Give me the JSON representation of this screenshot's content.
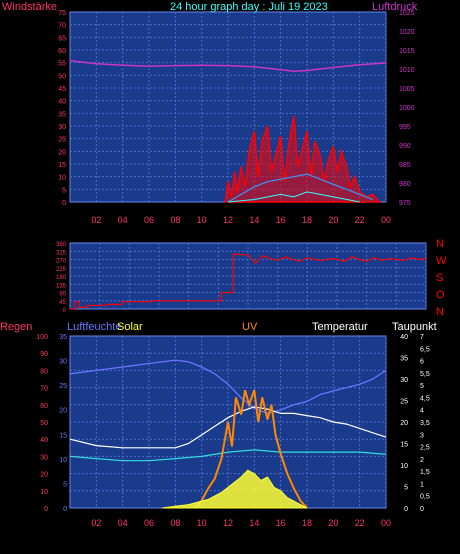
{
  "colors": {
    "panel_bg": "#1a3a8c",
    "grid": "#4a6fd0",
    "wind_red": "#ff0000",
    "pressure_magenta": "#cc33cc",
    "wind_blue": "#3399ff",
    "cyan": "#33ffff",
    "humidity": "#6677ff",
    "uv": "#ff8800",
    "solar": "#ffff33",
    "temp": "#ffffff",
    "dewpoint": "#33dddd",
    "rain": "#ff3366"
  },
  "chart_data": [
    {
      "type": "line",
      "title": "24 hour graph day : Juli 19 2023",
      "ylabel_left": "Windstärke",
      "ylabel_right": "Luftdruck",
      "left_ticks": [
        "75",
        "70",
        "65",
        "60",
        "55",
        "50",
        "45",
        "40",
        "35",
        "30",
        "25",
        "20",
        "15",
        "10",
        "5",
        "0"
      ],
      "left_range": [
        0,
        75
      ],
      "right_ticks": [
        "1025",
        "1020",
        "1015",
        "1010",
        "1005",
        "1000",
        "995",
        "990",
        "985",
        "980",
        "975"
      ],
      "right_range": [
        975,
        1025
      ],
      "x_ticks": [
        "02",
        "04",
        "06",
        "08",
        "10",
        "12",
        "14",
        "16",
        "18",
        "20",
        "22",
        "00"
      ],
      "series": [
        {
          "key": "pressure",
          "axis": "right",
          "x": [
            0,
            2,
            4,
            6,
            8,
            10,
            12,
            14,
            16,
            17,
            18,
            20,
            22,
            24
          ],
          "values": [
            1012.2,
            1011.4,
            1011.0,
            1010.7,
            1010.9,
            1011.0,
            1010.9,
            1010.6,
            1009.8,
            1009.4,
            1009.6,
            1010.4,
            1011.1,
            1011.6
          ]
        },
        {
          "key": "gust",
          "axis": "left",
          "x": [
            11.8,
            12.0,
            12.3,
            12.5,
            12.7,
            13.0,
            13.3,
            13.6,
            14.0,
            14.3,
            14.6,
            15.0,
            15.3,
            15.6,
            16.0,
            16.3,
            16.6,
            17.0,
            17.3,
            17.6,
            18.0,
            18.3,
            18.6,
            19.0,
            19.3,
            19.6,
            20.0,
            20.3,
            20.6,
            21.0,
            21.3,
            21.6,
            22.0,
            22.5,
            23.0,
            23.5
          ],
          "values": [
            0,
            8,
            2,
            12,
            4,
            14,
            6,
            20,
            28,
            10,
            24,
            30,
            12,
            18,
            26,
            8,
            22,
            34,
            14,
            20,
            28,
            10,
            24,
            18,
            8,
            16,
            22,
            12,
            20,
            14,
            6,
            10,
            4,
            2,
            3,
            0
          ]
        },
        {
          "key": "wind_avg",
          "axis": "left",
          "x": [
            12,
            13,
            14,
            15,
            16,
            17,
            18,
            19,
            20,
            21,
            22,
            23
          ],
          "values": [
            0,
            3,
            6,
            8,
            9,
            10,
            11,
            9,
            7,
            5,
            3,
            1
          ]
        },
        {
          "key": "wind_min",
          "axis": "left",
          "x": [
            12,
            14,
            16,
            17,
            18,
            19,
            20,
            22
          ],
          "values": [
            0,
            1,
            3,
            2,
            4,
            3,
            2,
            0
          ]
        }
      ]
    },
    {
      "type": "line",
      "left_ticks": [
        "360",
        "315",
        "270",
        "225",
        "180",
        "135",
        "90",
        "45",
        "0"
      ],
      "left_range": [
        0,
        360
      ],
      "compass_labels": [
        "N",
        "W",
        "S",
        "O",
        "N"
      ],
      "x_ticks": [
        "02",
        "04",
        "06",
        "08",
        "10",
        "12",
        "14",
        "16",
        "18",
        "20",
        "22",
        "00"
      ],
      "series": [
        {
          "key": "wind_dir",
          "x": [
            0,
            0.3,
            0.3,
            0.6,
            0.6,
            1.2,
            1.2,
            2.5,
            2.5,
            3.5,
            3.5,
            5.5,
            5.5,
            10.2,
            10.2,
            11.0,
            11.0,
            12.0,
            12.5,
            13.0,
            13.5,
            14.0,
            14.5,
            15.0,
            15.5,
            16.0,
            16.5,
            17.0,
            17.5,
            18.0,
            18.5,
            19.0,
            19.5,
            20.0,
            20.5,
            21.0,
            21.5,
            22.0,
            22.5,
            23.0,
            23.5,
            24.0
          ],
          "values": [
            0,
            0,
            40,
            40,
            10,
            10,
            20,
            20,
            25,
            25,
            40,
            40,
            45,
            45,
            90,
            90,
            300,
            295,
            250,
            290,
            275,
            265,
            285,
            270,
            260,
            280,
            270,
            265,
            275,
            270,
            260,
            285,
            270,
            260,
            280,
            265,
            275,
            270,
            265,
            280,
            270,
            275
          ]
        }
      ]
    },
    {
      "type": "line",
      "legend": [
        "Regen",
        "Luftfeuchte",
        "Solar",
        "UV",
        "Temperatur",
        "Taupunkt"
      ],
      "left_ticks": [
        "100",
        "90",
        "80",
        "70",
        "60",
        "50",
        "40",
        "30",
        "20",
        "10",
        "0"
      ],
      "left_range": [
        0,
        100
      ],
      "humidity_ticks": [
        "35",
        "30",
        "25",
        "20",
        "15",
        "10",
        "5",
        "0"
      ],
      "humidity_range": [
        0,
        35
      ],
      "right_temp_ticks": [
        "40",
        "35",
        "30",
        "25",
        "20",
        "15",
        "10",
        "5",
        "0"
      ],
      "right_temp_range": [
        0,
        40
      ],
      "right_uv_ticks": [
        "7",
        "6,5",
        "6",
        "5,5",
        "5",
        "4,5",
        "4",
        "3,5",
        "3",
        "2,5",
        "2",
        "1,5",
        "1",
        "0,5",
        "0"
      ],
      "right_uv_range": [
        0,
        7
      ],
      "x_ticks": [
        "02",
        "04",
        "06",
        "08",
        "10",
        "12",
        "14",
        "16",
        "18",
        "20",
        "22",
        "00"
      ],
      "series": [
        {
          "key": "humidity",
          "axis": "left",
          "x": [
            0,
            2,
            4,
            6,
            8,
            9,
            10,
            11,
            12,
            13,
            14,
            15,
            16,
            17,
            18,
            19,
            20,
            21,
            22,
            23,
            24
          ],
          "values": [
            78,
            80,
            82,
            84,
            86,
            85,
            82,
            78,
            72,
            64,
            58,
            55,
            57,
            60,
            62,
            66,
            68,
            70,
            72,
            75,
            80
          ]
        },
        {
          "key": "temperature",
          "axis": "temp",
          "x": [
            0,
            2,
            4,
            6,
            8,
            9,
            10,
            11,
            12,
            13,
            14,
            15,
            16,
            17,
            18,
            19,
            20,
            21,
            22,
            23,
            24
          ],
          "values": [
            16,
            14.5,
            14,
            14,
            14,
            15,
            17,
            19,
            21,
            22.5,
            23.5,
            23,
            22,
            22,
            21.5,
            21,
            20,
            19.5,
            18.5,
            17.5,
            16.5
          ]
        },
        {
          "key": "dewpoint",
          "axis": "temp",
          "x": [
            0,
            2,
            4,
            6,
            8,
            10,
            12,
            14,
            16,
            18,
            20,
            22,
            24
          ],
          "values": [
            12,
            11.5,
            11,
            11,
            11.5,
            12,
            13,
            13.5,
            13,
            13,
            13,
            13,
            12.5
          ]
        },
        {
          "key": "uv",
          "axis": "uv",
          "x": [
            9.5,
            10,
            10.5,
            11,
            11.5,
            12,
            12.3,
            12.6,
            13,
            13.3,
            13.6,
            14,
            14.3,
            14.6,
            15,
            15.3,
            15.6,
            16,
            16.5,
            17,
            17.5,
            18
          ],
          "values": [
            0,
            0.3,
            0.8,
            1.2,
            2.0,
            3.5,
            2.5,
            4.5,
            3.8,
            4.8,
            4.2,
            4.8,
            3.5,
            4.5,
            3.6,
            4.2,
            3.0,
            2.2,
            1.4,
            0.8,
            0.3,
            0
          ]
        },
        {
          "key": "solar",
          "axis": "left",
          "x": [
            7,
            8,
            9,
            10,
            10.5,
            11,
            11.5,
            12,
            12.5,
            13,
            13.5,
            14,
            14.5,
            15,
            15.5,
            16,
            16.5,
            17,
            17.5,
            18
          ],
          "values": [
            0,
            1,
            2,
            4,
            5,
            7,
            9,
            12,
            15,
            18,
            22,
            20,
            16,
            18,
            12,
            10,
            6,
            4,
            2,
            0
          ]
        }
      ]
    }
  ]
}
